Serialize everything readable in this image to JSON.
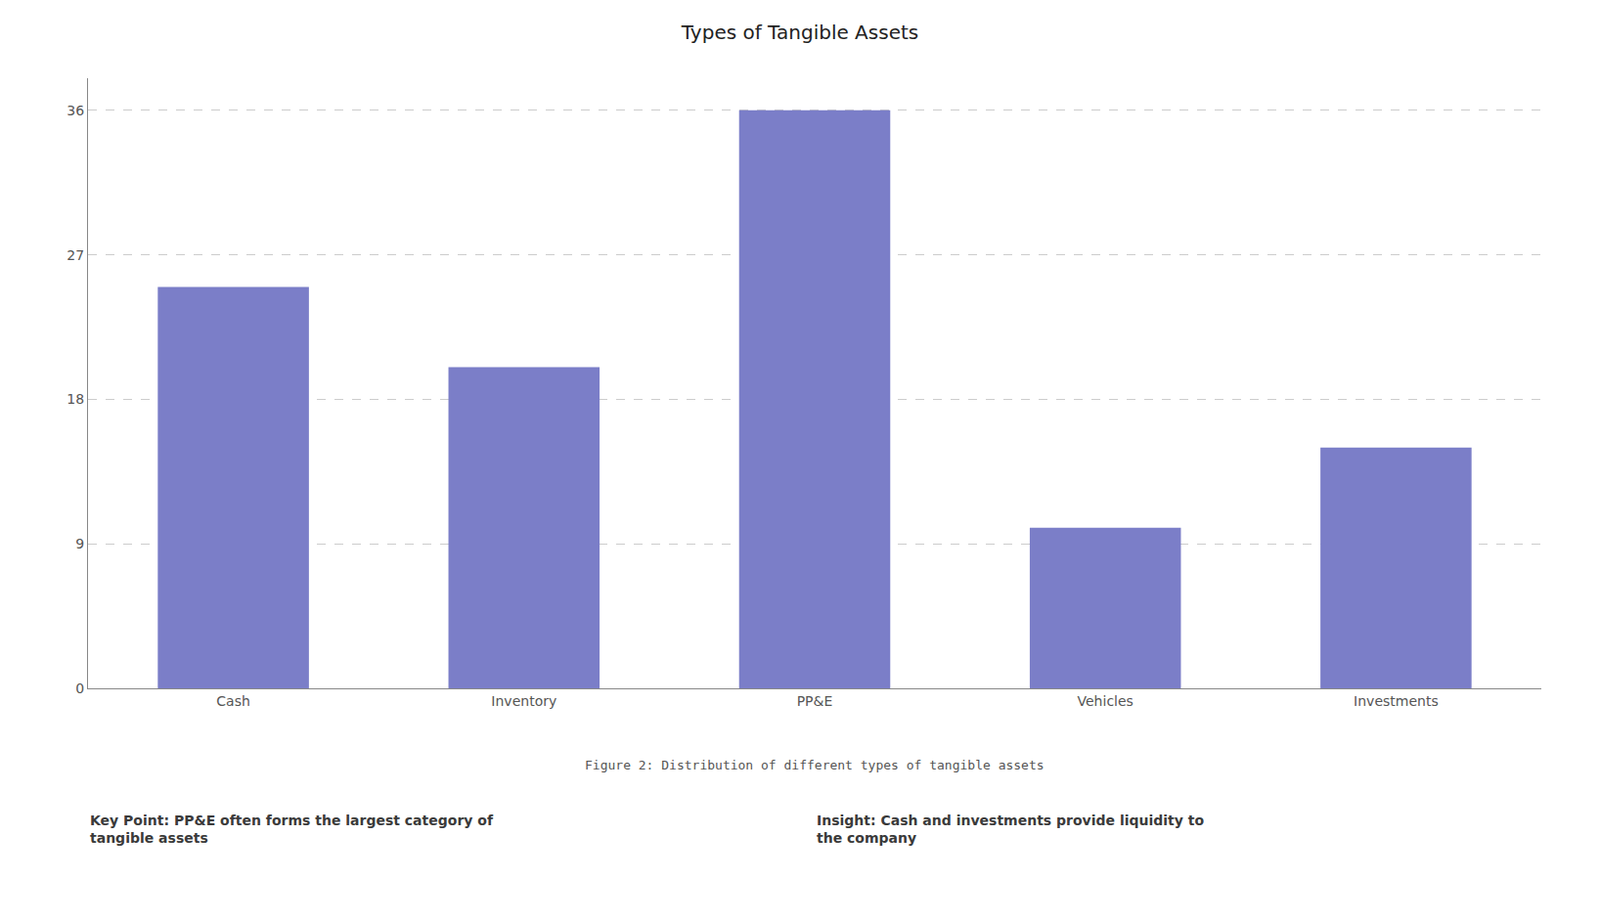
{
  "chart_data": {
    "type": "bar",
    "title": "Types of Tangible Assets",
    "categories": [
      "Cash",
      "Inventory",
      "PP&E",
      "Vehicles",
      "Investments"
    ],
    "values": [
      25,
      20,
      36,
      10,
      15
    ],
    "color": "#7B7EC8",
    "ylim": [
      0,
      38
    ],
    "yticks": [
      0,
      9,
      18,
      27,
      36
    ],
    "grid": true,
    "annotations": [
      "Figure 2: Distribution of different types of tangible assets",
      "Key Point: PP&E often forms the largest category of\ntangible assets",
      "Insight: Cash and investments provide liquidity to\nthe company"
    ]
  }
}
